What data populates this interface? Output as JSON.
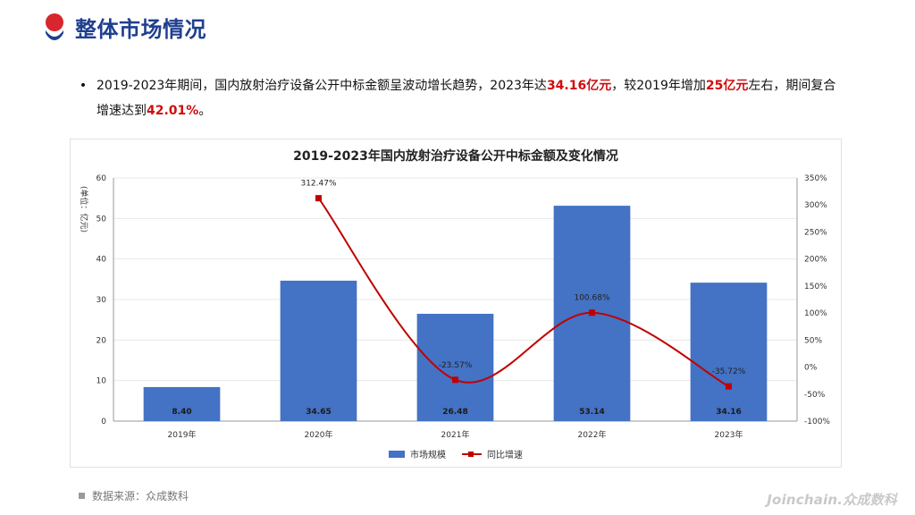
{
  "page": {
    "title": "整体市场情况",
    "summary": {
      "bullet": "•",
      "before_1": "2019-2023年期间，国内放射治疗设备公开中标金额呈波动增长趋势，2023年达",
      "emphasis_1": "34.16亿元",
      "between_1_2": "，较2019年增加",
      "emphasis_2": "25亿元",
      "between_2_3": "左右，期间复合增速达到",
      "emphasis_3": "42.01%",
      "after_3": "。"
    },
    "source": "数据来源：众成数科",
    "brand": "Joinchain.众成数科"
  },
  "chart_data": {
    "type": "bar",
    "title": "2019-2023年国内放射治疗设备公开中标金额及变化情况",
    "categories": [
      "2019年",
      "2020年",
      "2021年",
      "2022年",
      "2023年"
    ],
    "y_left": {
      "label": "(单位：亿元)",
      "ticks": [
        "0",
        "10",
        "20",
        "30",
        "40",
        "50",
        "60"
      ],
      "ylim": [
        0,
        60
      ]
    },
    "y_right": {
      "ticks": [
        "-100%",
        "-50%",
        "0%",
        "50%",
        "100%",
        "150%",
        "200%",
        "250%",
        "300%",
        "350%"
      ],
      "ylim": [
        -100,
        350
      ]
    },
    "series": [
      {
        "name": "市场规模",
        "kind": "bar",
        "axis": "left",
        "values": [
          8.4,
          34.65,
          26.48,
          53.14,
          34.16
        ],
        "labels": [
          "8.40",
          "34.65",
          "26.48",
          "53.14",
          "34.16"
        ]
      },
      {
        "name": "同比增速",
        "kind": "line",
        "axis": "right",
        "values": [
          null,
          312.47,
          -23.57,
          100.68,
          -35.72
        ],
        "labels": [
          "",
          "312.47%",
          "-23.57%",
          "100.68%",
          "-35.72%"
        ]
      }
    ],
    "grid": "horizontal",
    "legend": "bottom-center",
    "colors": {
      "bar": "#4472c4",
      "line": "#c00000",
      "grid": "#e8e8e8",
      "axis": "#666666"
    }
  }
}
